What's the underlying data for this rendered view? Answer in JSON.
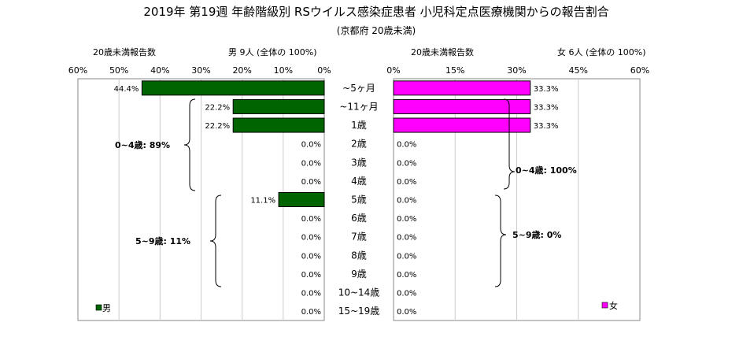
{
  "chart_data": {
    "type": "bar",
    "orientation": "horizontal-butterfly",
    "title": "2019年 第19週 年齢階級別 RSウイルス感染症患者 小児科定点医療機関からの報告割合",
    "subtitle": "(京都府 20歳未満)",
    "categories": [
      "~5ヶ月",
      "~11ヶ月",
      "1歳",
      "2歳",
      "3歳",
      "4歳",
      "5歳",
      "6歳",
      "7歳",
      "8歳",
      "9歳",
      "10~14歳",
      "15~19歳"
    ],
    "left_panel": {
      "header_left": "20歳未満報告数",
      "header_right": "男  9人 (全体の  100%)",
      "series_name": "男",
      "color": "#006400",
      "xlim": [
        0,
        60
      ],
      "ticks": [
        "60%",
        "50%",
        "40%",
        "30%",
        "20%",
        "10%",
        "0%"
      ],
      "tick_values": [
        60,
        50,
        40,
        30,
        20,
        10,
        0
      ],
      "values": [
        44.4,
        22.2,
        22.2,
        0.0,
        0.0,
        0.0,
        11.1,
        0.0,
        0.0,
        0.0,
        0.0,
        0.0,
        0.0
      ],
      "value_labels": [
        "44.4%",
        "22.2%",
        "22.2%",
        "0.0%",
        "0.0%",
        "0.0%",
        "11.1%",
        "0.0%",
        "0.0%",
        "0.0%",
        "0.0%",
        "0.0%",
        "0.0%"
      ],
      "annotations": [
        "0~4歳: 89%",
        "5~9歳: 11%"
      ]
    },
    "right_panel": {
      "header_left": "20歳未満報告数",
      "header_right": "女  6人 (全体の  100%)",
      "series_name": "女",
      "color": "#ff00ff",
      "xlim": [
        0,
        60
      ],
      "ticks": [
        "0%",
        "15%",
        "30%",
        "45%",
        "60%"
      ],
      "tick_values": [
        0,
        15,
        30,
        45,
        60
      ],
      "values": [
        33.3,
        33.3,
        33.3,
        0.0,
        0.0,
        0.0,
        0.0,
        0.0,
        0.0,
        0.0,
        0.0,
        0.0,
        0.0
      ],
      "value_labels": [
        "33.3%",
        "33.3%",
        "33.3%",
        "0.0%",
        "0.0%",
        "0.0%",
        "0.0%",
        "0.0%",
        "0.0%",
        "0.0%",
        "0.0%",
        "0.0%",
        "0.0%"
      ],
      "annotations": [
        "0~4歳: 100%",
        "5~9歳: 0%"
      ]
    },
    "grid": true
  }
}
